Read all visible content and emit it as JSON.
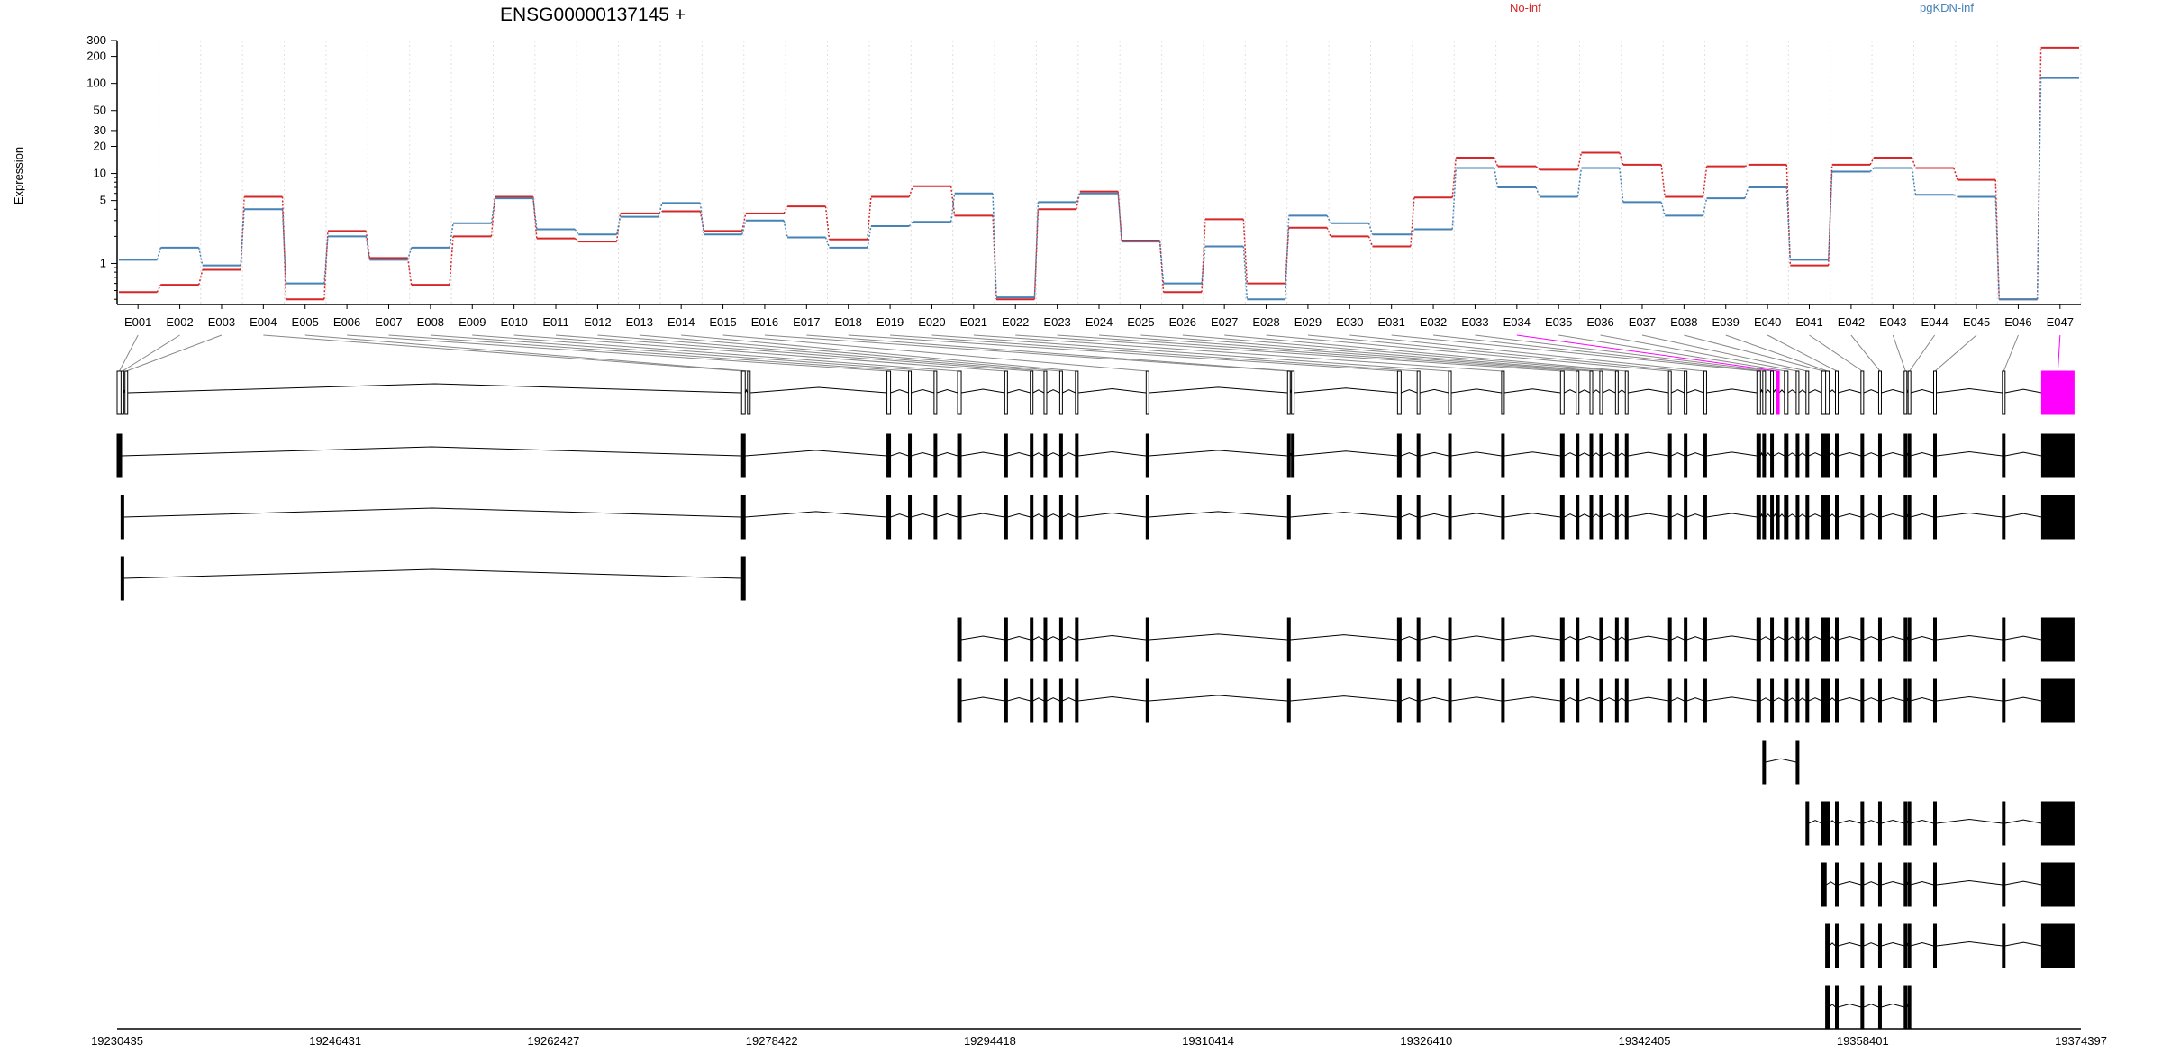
{
  "chart_data": {
    "type": "line",
    "title": "ENSG00000137145 +",
    "ylabel": "Expression",
    "yscale": "log",
    "ylim": [
      0.35,
      300
    ],
    "yticks": [
      1,
      5,
      10,
      20,
      30,
      50,
      100,
      200,
      300
    ],
    "grid": "vertical dotted",
    "legend_position": "top",
    "exons": [
      "E001",
      "E002",
      "E003",
      "E004",
      "E005",
      "E006",
      "E007",
      "E008",
      "E009",
      "E010",
      "E011",
      "E012",
      "E013",
      "E014",
      "E015",
      "E016",
      "E017",
      "E018",
      "E019",
      "E020",
      "E021",
      "E022",
      "E023",
      "E024",
      "E025",
      "E026",
      "E027",
      "E028",
      "E029",
      "E030",
      "E031",
      "E032",
      "E033",
      "E034",
      "E035",
      "E036",
      "E037",
      "E038",
      "E039",
      "E040",
      "E041",
      "E042",
      "E043",
      "E044",
      "E045",
      "E046",
      "E047"
    ],
    "series": [
      {
        "name": "No-inf",
        "color": "#d62728",
        "values": [
          0.48,
          0.58,
          0.85,
          5.5,
          0.4,
          2.3,
          1.15,
          0.58,
          2.0,
          5.5,
          1.9,
          1.75,
          3.6,
          3.8,
          2.3,
          3.6,
          4.3,
          1.85,
          5.5,
          7.2,
          3.4,
          0.4,
          4.0,
          6.3,
          1.8,
          0.48,
          3.1,
          0.6,
          2.5,
          2.0,
          1.55,
          5.4,
          15.0,
          12.0,
          11.0,
          17.0,
          12.5,
          5.5,
          12.0,
          12.5,
          0.95,
          12.5,
          15.0,
          11.5,
          8.5,
          0.4,
          250
        ]
      },
      {
        "name": "pgKDN-inf",
        "color": "#4682b4",
        "values": [
          1.1,
          1.5,
          0.95,
          4.0,
          0.6,
          2.0,
          1.1,
          1.5,
          2.8,
          5.3,
          2.4,
          2.1,
          3.3,
          4.7,
          2.1,
          3.0,
          1.95,
          1.5,
          2.6,
          2.9,
          6.0,
          0.42,
          4.8,
          6.0,
          1.75,
          0.6,
          1.55,
          0.4,
          3.4,
          2.8,
          2.1,
          2.4,
          11.5,
          7.0,
          5.5,
          11.5,
          4.8,
          3.4,
          5.3,
          7.0,
          1.1,
          10.5,
          11.5,
          5.8,
          5.5,
          0.4,
          115
        ]
      }
    ],
    "genomic_axis": {
      "ticks": [
        "19230435",
        "19246431",
        "19262427",
        "19278422",
        "19294418",
        "19310414",
        "19326410",
        "19342405",
        "19358401",
        "19374397"
      ]
    },
    "transcript_count": 11,
    "highlighted_exons": [
      "E034",
      "E047"
    ],
    "highlight_color": "#ff00ff"
  }
}
